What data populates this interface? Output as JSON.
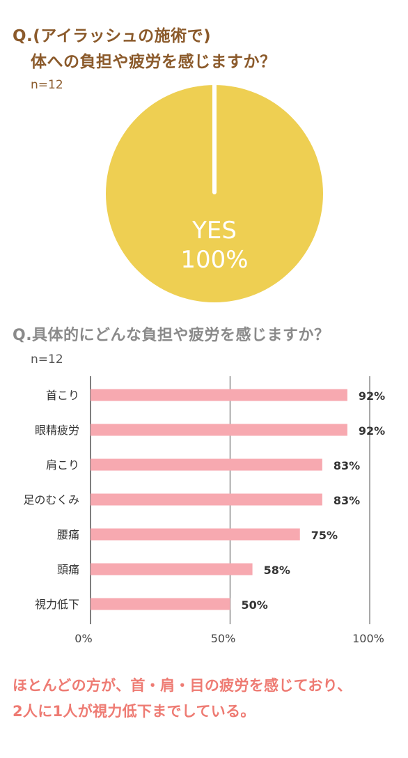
{
  "question1": {
    "line1": "Q.(アイラッシュの施術で)",
    "line2": "体への負担や疲労を感じますか？",
    "n": "n=12"
  },
  "question2": {
    "title": "Q.具体的にどんな負担や疲労を感じますか？",
    "n": "n=12"
  },
  "summary": {
    "line1": "ほとんどの方が、首・肩・目の疲労を感じており、",
    "line2": "2人に1人が視力低下までしている。"
  },
  "colors": {
    "pie": "#eecf52",
    "bar": "#f7a9b0",
    "brown": "#8b5a2b",
    "summary": "#ee7b73",
    "grid": "#8c8c8c"
  },
  "chart_data": [
    {
      "type": "pie",
      "slices": [
        {
          "label": "YES",
          "value": 100,
          "display": "100%"
        }
      ]
    },
    {
      "type": "bar",
      "orientation": "horizontal",
      "categories": [
        "首こり",
        "眼精疲労",
        "肩こり",
        "足のむくみ",
        "腰痛",
        "頭痛",
        "視力低下"
      ],
      "values": [
        92,
        92,
        83,
        83,
        75,
        58,
        50
      ],
      "value_labels": [
        "92%",
        "92%",
        "83%",
        "83%",
        "75%",
        "58%",
        "50%"
      ],
      "xlim": [
        0,
        100
      ],
      "xticks": [
        "0%",
        "50%",
        "100%"
      ],
      "grid": true
    }
  ]
}
